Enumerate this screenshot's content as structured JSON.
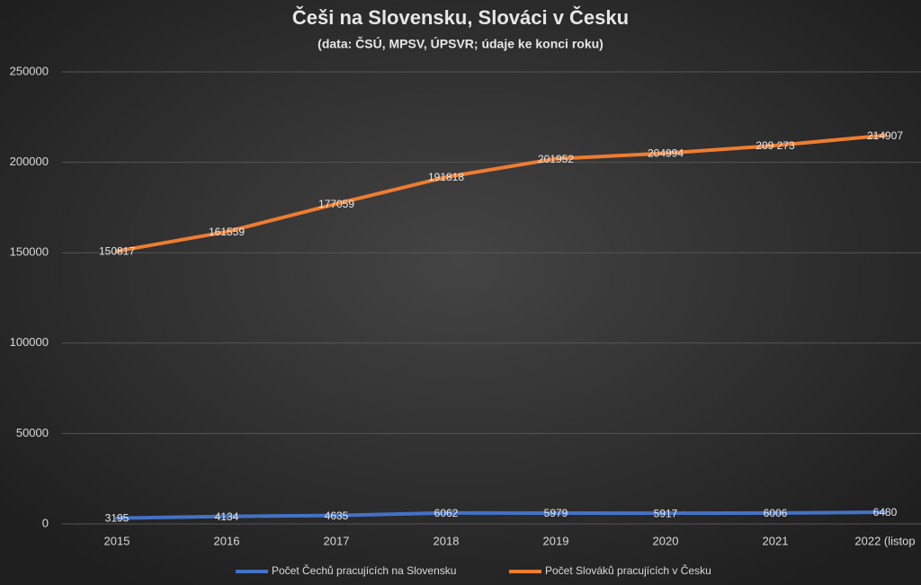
{
  "chart_data": {
    "type": "line",
    "title": "Češi na Slovensku, Slováci v Česku",
    "subtitle": "(data: ČSÚ, MPSV, ÚPSVR; údaje ke konci roku)",
    "categories": [
      "2015",
      "2016",
      "2017",
      "2018",
      "2019",
      "2020",
      "2021",
      "2022 (listop"
    ],
    "series": [
      {
        "name": "Počet Čechů pracujících na Slovensku",
        "color": "#4472c4",
        "values": [
          3195,
          4134,
          4635,
          6062,
          5979,
          5917,
          6006,
          6480
        ]
      },
      {
        "name": "Počet Slováků pracujících v Česku",
        "color": "#ed7d31",
        "values": [
          150817,
          161559,
          177059,
          191818,
          201952,
          204994,
          209273,
          214907
        ],
        "value_labels": [
          "150817",
          "161559",
          "177059",
          "191818",
          "201952",
          "204994",
          "209 273",
          "214907"
        ]
      }
    ],
    "ylim": [
      0,
      250000
    ],
    "yticks": [
      0,
      50000,
      100000,
      150000,
      200000,
      250000
    ],
    "grid": true,
    "legend": "bottom"
  }
}
